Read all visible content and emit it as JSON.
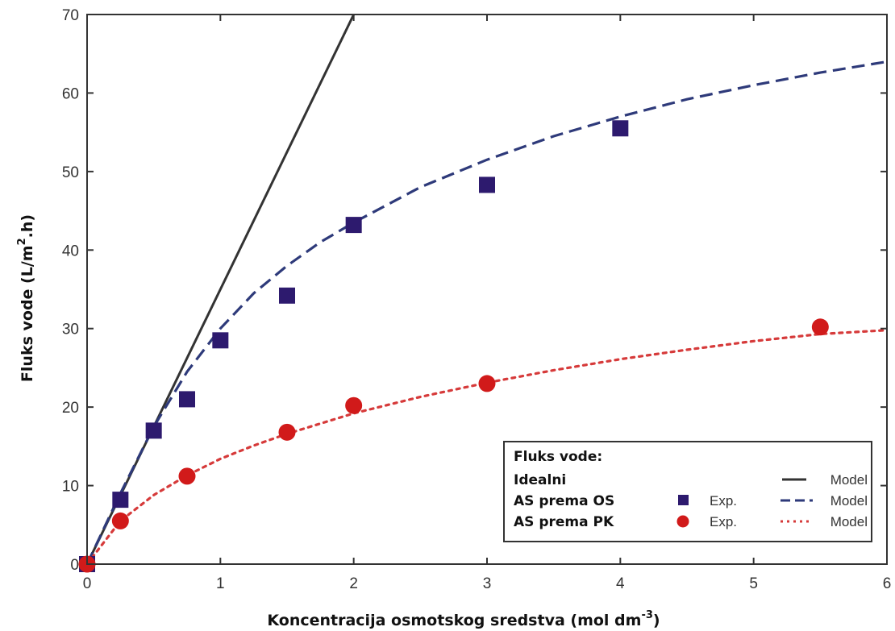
{
  "chart_data": {
    "type": "scatter",
    "xlabel_main": "Koncentracija osmotskog sredstva (mol dm",
    "xlabel_sup": "-3",
    "xlabel_end": ")",
    "ylabel_main": "Fluks vode  (L/m",
    "ylabel_sup": "2",
    "ylabel_end": ".h)",
    "xlim": [
      0,
      6
    ],
    "ylim": [
      0,
      70
    ],
    "xticks": [
      0,
      1,
      2,
      3,
      4,
      5,
      6
    ],
    "yticks": [
      0,
      10,
      20,
      30,
      40,
      50,
      60,
      70
    ],
    "grid": false,
    "legend_position": "bottom-right",
    "series": [
      {
        "key": "ideal",
        "label": "Idealni",
        "kind": "line",
        "style": "solid",
        "color": "#333333",
        "x": [
          0,
          2
        ],
        "y": [
          0,
          70
        ]
      },
      {
        "key": "os_model",
        "label": "AS prema OS",
        "kind": "line",
        "style": "dashed",
        "color": "#2e3a7a",
        "x": [
          0,
          0.25,
          0.5,
          0.75,
          1,
          1.25,
          1.5,
          1.75,
          2,
          2.5,
          3,
          3.5,
          4,
          4.5,
          5,
          5.5,
          6
        ],
        "y": [
          0,
          9,
          17.5,
          24.5,
          30,
          34.5,
          38,
          41,
          43.5,
          48,
          51.5,
          54.5,
          57,
          59.2,
          61,
          62.6,
          64
        ]
      },
      {
        "key": "os_exp",
        "label": "AS prema OS",
        "kind": "points",
        "marker": "square",
        "color": "#2d1a6e",
        "x": [
          0,
          0.25,
          0.5,
          0.75,
          1,
          1.5,
          2,
          3,
          4
        ],
        "y": [
          0,
          8.2,
          17,
          21,
          28.5,
          34.2,
          43.2,
          48.3,
          55.5
        ]
      },
      {
        "key": "pk_model",
        "label": "AS prema PK",
        "kind": "line",
        "style": "dotted",
        "color": "#d63a3a",
        "x": [
          0,
          0.25,
          0.5,
          0.75,
          1,
          1.25,
          1.5,
          2,
          2.5,
          3,
          3.5,
          4,
          4.5,
          5,
          5.5,
          6
        ],
        "y": [
          0,
          5.5,
          8.8,
          11.3,
          13.4,
          15.1,
          16.6,
          19.2,
          21.3,
          23.1,
          24.7,
          26.1,
          27.3,
          28.4,
          29.3,
          29.8
        ]
      },
      {
        "key": "pk_exp",
        "label": "AS prema PK",
        "kind": "points",
        "marker": "circle",
        "color": "#d11a1a",
        "x": [
          0,
          0.25,
          0.75,
          1.5,
          2,
          3,
          5.5
        ],
        "y": [
          0,
          5.5,
          11.2,
          16.8,
          20.2,
          23,
          30.2
        ]
      }
    ],
    "legend": {
      "title": "Fluks vode:",
      "rows": [
        {
          "label": "Idealni",
          "exp_text": "",
          "model_text": "Model",
          "marker": "none",
          "line": "solid",
          "line_color": "#333333",
          "marker_color": ""
        },
        {
          "label": "AS prema OS",
          "exp_text": "Exp.",
          "model_text": "Model",
          "marker": "square",
          "line": "dashed",
          "line_color": "#2e3a7a",
          "marker_color": "#2d1a6e"
        },
        {
          "label": "AS prema PK",
          "exp_text": "Exp.",
          "model_text": "Model",
          "marker": "circle",
          "line": "dotted",
          "line_color": "#d63a3a",
          "marker_color": "#d11a1a"
        }
      ]
    }
  }
}
